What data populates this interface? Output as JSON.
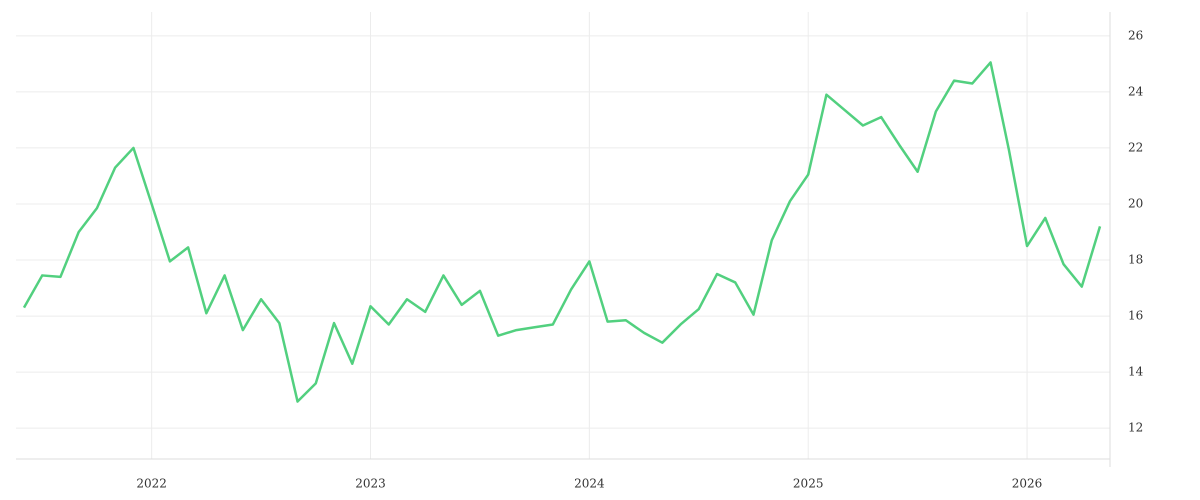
{
  "chart_data": {
    "type": "line",
    "x": [
      "2021-06",
      "2021-07",
      "2021-08",
      "2021-09",
      "2021-10",
      "2021-11",
      "2021-12",
      "2022-01",
      "2022-02",
      "2022-03",
      "2022-04",
      "2022-05",
      "2022-06",
      "2022-07",
      "2022-08",
      "2022-09",
      "2022-10",
      "2022-11",
      "2022-12",
      "2023-01",
      "2023-02",
      "2023-03",
      "2023-04",
      "2023-05",
      "2023-06",
      "2023-07",
      "2023-08",
      "2023-09",
      "2023-10",
      "2023-11",
      "2023-12",
      "2024-01",
      "2024-02",
      "2024-03",
      "2024-04",
      "2024-05",
      "2024-06",
      "2024-07",
      "2024-08",
      "2024-09",
      "2024-10",
      "2024-11",
      "2024-12",
      "2025-01",
      "2025-02",
      "2025-03",
      "2025-04",
      "2025-05",
      "2025-06",
      "2025-07",
      "2025-08",
      "2025-09",
      "2025-10",
      "2025-11",
      "2025-12",
      "2026-01",
      "2026-02",
      "2026-03",
      "2026-04",
      "2026-05"
    ],
    "series": [
      {
        "color": "#52d07f",
        "values": [
          16.3,
          17.45,
          17.4,
          19.0,
          19.85,
          21.3,
          22.0,
          20.0,
          17.95,
          18.45,
          16.1,
          17.45,
          15.5,
          16.6,
          15.75,
          12.95,
          13.6,
          15.75,
          14.3,
          16.35,
          15.7,
          16.6,
          16.15,
          17.45,
          16.4,
          16.9,
          15.3,
          15.5,
          15.6,
          15.7,
          16.95,
          17.95,
          15.8,
          15.85,
          15.4,
          15.05,
          15.7,
          16.25,
          17.5,
          17.2,
          16.05,
          18.7,
          20.1,
          21.05,
          23.9,
          23.35,
          22.8,
          23.1,
          22.1,
          21.15,
          23.3,
          24.4,
          24.3,
          25.05,
          21.95,
          18.5,
          19.5,
          17.85,
          17.05,
          19.2
        ]
      }
    ],
    "xlim": [
      "2021-06",
      "2026-05"
    ],
    "xticks": [
      {
        "value": "2022-01",
        "label": "2022"
      },
      {
        "value": "2023-01",
        "label": "2023"
      },
      {
        "value": "2024-01",
        "label": "2024"
      },
      {
        "value": "2025-01",
        "label": "2025"
      },
      {
        "value": "2026-01",
        "label": "2026"
      }
    ],
    "ylim": [
      10.9,
      26.85
    ],
    "yticks": [
      12,
      14,
      16,
      18,
      20,
      22,
      24,
      26
    ],
    "grid": true
  }
}
